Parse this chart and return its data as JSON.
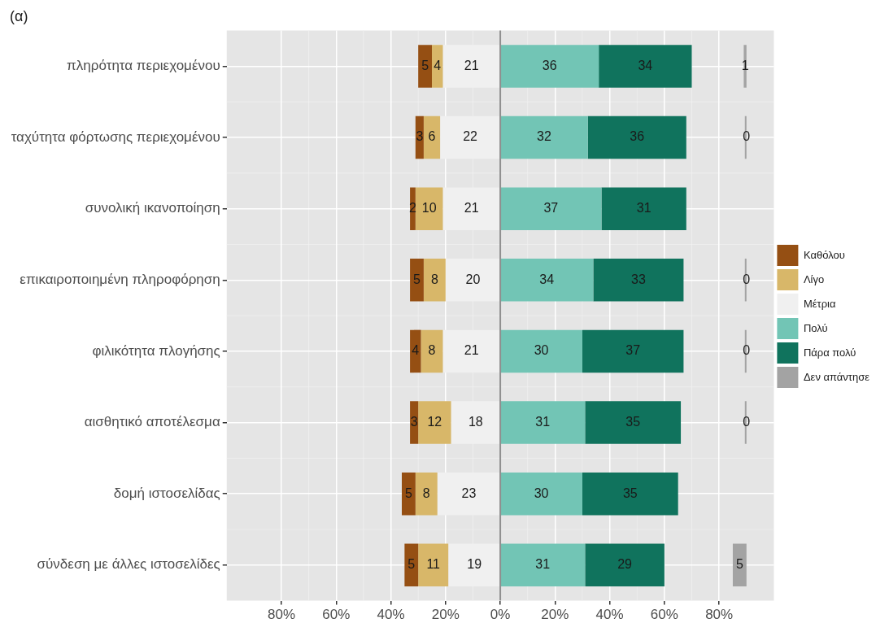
{
  "chart_data": {
    "type": "bar",
    "orientation": "horizontal",
    "title": "(α)",
    "categories": [
      "πληρότητα περιεχομένου",
      "ταχύτητα φόρτωσης περιεχομένου",
      "συνολική ικανοποίηση",
      "επικαιροποιημένη πληροφόρηση",
      "φιλικότητα πλογήσης",
      "αισθητικό αποτέλεσμα",
      "δομή ιστοσελίδας",
      "σύνδεση με άλλες ιστοσελίδες"
    ],
    "series": [
      {
        "name": "Καθόλου",
        "color": "#954f13",
        "values": [
          5,
          3,
          2,
          5,
          4,
          3,
          5,
          5
        ],
        "base": [
          -30,
          -31,
          -33,
          -33,
          -33,
          -33,
          -36,
          -35
        ]
      },
      {
        "name": "Λίγο",
        "color": "#d8b769",
        "values": [
          4,
          6,
          10,
          8,
          8,
          12,
          8,
          11
        ],
        "base": [
          -25,
          -28,
          -31,
          -28,
          -29,
          -30,
          -31,
          -30
        ]
      },
      {
        "name": "Μέτρια",
        "color": "#f0f0f0",
        "values": [
          21,
          22,
          21,
          20,
          21,
          18,
          23,
          19
        ],
        "base": [
          -21,
          -22,
          -21,
          -20,
          -21,
          -18,
          -23,
          -19
        ]
      },
      {
        "name": "Πολύ",
        "color": "#72c5b5",
        "values": [
          36,
          32,
          37,
          34,
          30,
          31,
          30,
          31
        ],
        "base": [
          0,
          0,
          0,
          0,
          0,
          0,
          0,
          0
        ]
      },
      {
        "name": "Πάρα πολύ",
        "color": "#10735d",
        "values": [
          34,
          36,
          31,
          33,
          37,
          35,
          35,
          29
        ],
        "base": [
          36,
          32,
          37,
          34,
          30,
          31,
          30,
          31
        ]
      },
      {
        "name": "Δεν απάντησε",
        "color": "#a3a3a3",
        "values": [
          1,
          0,
          null,
          0,
          0,
          0,
          null,
          5
        ],
        "base": [
          89,
          90,
          null,
          90,
          90,
          90,
          null,
          85
        ]
      }
    ],
    "data_labels": true,
    "xlim": [
      -100,
      100
    ],
    "xticks": [
      {
        "value": -80,
        "label": "80%"
      },
      {
        "value": -60,
        "label": "60%"
      },
      {
        "value": -40,
        "label": "40%"
      },
      {
        "value": -20,
        "label": "20%"
      },
      {
        "value": 0,
        "label": "0%"
      },
      {
        "value": 20,
        "label": "20%"
      },
      {
        "value": 40,
        "label": "40%"
      },
      {
        "value": 60,
        "label": "60%"
      },
      {
        "value": 80,
        "label": "80%"
      }
    ],
    "ref_lines": [
      {
        "axis": "x",
        "value": 0,
        "color": "#8f8f8f"
      }
    ],
    "grid": true,
    "legend": "right"
  }
}
